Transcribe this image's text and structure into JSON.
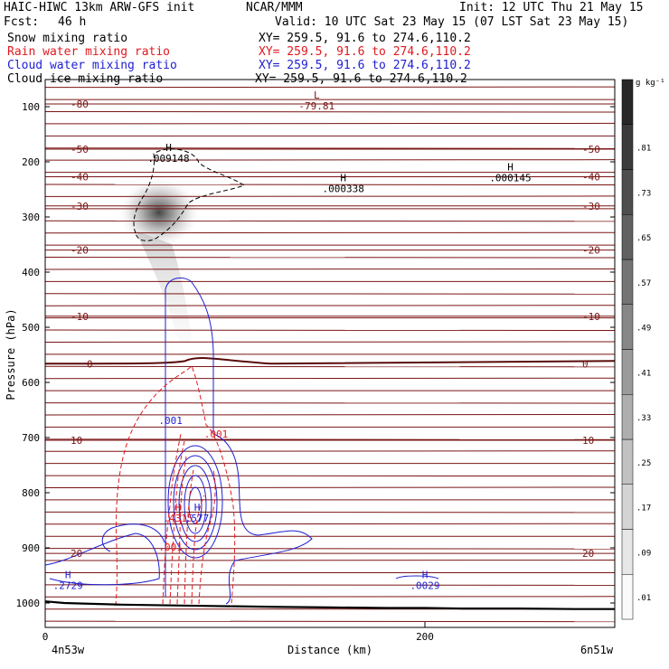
{
  "header": {
    "model": "HAIC-HIWC 13km ARW-GFS init",
    "center": "NCAR/MMM",
    "init": "Init: 12 UTC Thu 21 May 15",
    "fcst_label": "Fcst:",
    "fcst_value": "46 h",
    "valid": "Valid: 10 UTC Sat 23 May 15 (07 LST Sat 23 May 15)"
  },
  "fields": [
    {
      "name": "Snow mixing ratio",
      "xy": "XY= 259.5, 91.6 to 274.6,110.2",
      "color": "#000000"
    },
    {
      "name": "Rain water mixing ratio",
      "xy": "XY= 259.5, 91.6 to 274.6,110.2",
      "color": "#e0191e"
    },
    {
      "name": "Cloud water mixing ratio",
      "xy": "XY= 259.5, 91.6 to 274.6,110.2",
      "color": "#1e1ed2"
    },
    {
      "name": "Cloud ice mixing ratio",
      "xy": "XY= 259.5, 91.6 to 274.6,110.2",
      "color": "#000000"
    }
  ],
  "colors": {
    "temperature": "#7a1414",
    "freezing": "#5a0a0a",
    "rain": "#e0191e",
    "cloud_water": "#1e1ed2",
    "ice": "#000000",
    "terrain": "#000000"
  },
  "chart_data": {
    "type": "cross-section",
    "xlabel": "Distance (km)",
    "ylabel": "Pressure (hPa)",
    "xlim": [
      0,
      300
    ],
    "ylim": [
      1070,
      30
    ],
    "x_ticks": [
      0,
      200
    ],
    "y_ticks": [
      100,
      200,
      300,
      400,
      500,
      600,
      700,
      800,
      900,
      1000
    ],
    "x_endpoints": [
      "4n53w",
      "6n51w"
    ],
    "colorbar": {
      "unit": "g kg⁻¹",
      "ticks": [
        ".01",
        ".09",
        ".17",
        ".25",
        ".33",
        ".41",
        ".49",
        ".57",
        ".65",
        ".73",
        ".81"
      ]
    },
    "temperature_lines": [
      {
        "p": 95,
        "label": "-80"
      },
      {
        "p": 177,
        "label": "-50"
      },
      {
        "p": 227,
        "label": "-40"
      },
      {
        "p": 280,
        "label": "-30"
      },
      {
        "p": 360,
        "label": "-20"
      },
      {
        "p": 480,
        "label": "-10"
      },
      {
        "p": 566,
        "label": "0"
      },
      {
        "p": 705,
        "label": "10"
      },
      {
        "p": 910,
        "label": "20"
      }
    ],
    "extrema": [
      {
        "type": "L",
        "value": "-79.81",
        "x": 143,
        "p": 95,
        "color": "#7a1414"
      },
      {
        "type": "H",
        "value": ".009148",
        "x": 65,
        "p": 190,
        "color": "#000000"
      },
      {
        "type": "H",
        "value": ".000338",
        "x": 157,
        "p": 245,
        "color": "#000000"
      },
      {
        "type": "H",
        "value": ".000145",
        "x": 245,
        "p": 225,
        "color": "#000000"
      },
      {
        "type": "H",
        "value": ".4315",
        "x": 70,
        "p": 843,
        "color": "#e0191e"
      },
      {
        "type": "H",
        "value": ".577",
        "x": 80,
        "p": 843,
        "color": "#1e1ed2"
      },
      {
        "type": "H",
        "value": ".2729",
        "x": 12,
        "p": 965,
        "color": "#1e1ed2"
      },
      {
        "type": "H",
        "value": ".0029",
        "x": 200,
        "p": 965,
        "color": "#1e1ed2"
      }
    ],
    "contour_labels": [
      {
        "text": ".001",
        "x": 66,
        "p": 675,
        "color": "#1e1ed2"
      },
      {
        "text": ".001",
        "x": 90,
        "p": 700,
        "color": "#e0191e"
      },
      {
        "text": ".001",
        "x": 66,
        "p": 905,
        "color": "#e0191e"
      }
    ],
    "terrain": {
      "x": [
        0,
        10,
        20,
        40,
        60,
        80,
        100,
        120,
        150,
        180,
        200,
        220,
        250,
        280,
        300
      ],
      "p": [
        997,
        1000,
        1001,
        1003,
        1004,
        1005,
        1006,
        1007,
        1008,
        1009,
        1009,
        1010,
        1010,
        1011,
        1011
      ]
    }
  }
}
